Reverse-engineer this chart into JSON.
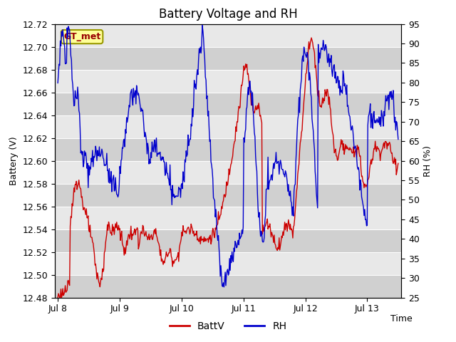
{
  "title": "Battery Voltage and RH",
  "xlabel": "Time",
  "ylabel_left": "Battery (V)",
  "ylabel_right": "RH (%)",
  "annotation": "GT_met",
  "ylim_left": [
    12.48,
    12.72
  ],
  "ylim_right": [
    25,
    95
  ],
  "yticks_left": [
    12.48,
    12.5,
    12.52,
    12.54,
    12.56,
    12.58,
    12.6,
    12.62,
    12.64,
    12.66,
    12.68,
    12.7,
    12.72
  ],
  "yticks_right": [
    25,
    30,
    35,
    40,
    45,
    50,
    55,
    60,
    65,
    70,
    75,
    80,
    85,
    90,
    95
  ],
  "xtick_labels": [
    "Jul 8",
    "Jul 9",
    "Jul 10",
    "Jul 11",
    "Jul 12",
    "Jul 13"
  ],
  "color_batt": "#cc0000",
  "color_rh": "#0000cc",
  "bg_light": "#e8e8e8",
  "bg_dark": "#d0d0d0",
  "line_width": 1.0,
  "title_fontsize": 12,
  "label_fontsize": 9,
  "tick_fontsize": 9,
  "legend_fontsize": 10,
  "annotation_bg": "#ffff99",
  "annotation_color": "#990000",
  "annotation_border": "#999900"
}
